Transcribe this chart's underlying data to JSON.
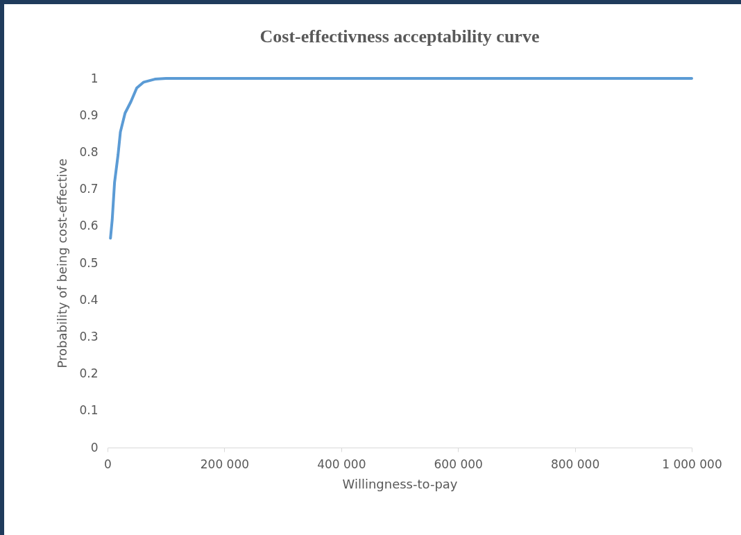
{
  "chart_data": {
    "type": "line",
    "title": "Cost-effectivness  acceptability curve",
    "xlabel": "Willingness-to-pay",
    "ylabel": "Probability of being cost-effective",
    "x": [
      5000,
      8000,
      12000,
      18000,
      22000,
      30000,
      40000,
      50000,
      62000,
      81000,
      100000,
      1000000
    ],
    "series": [
      {
        "color": "#5b9bd5",
        "values": [
          0.567,
          0.617,
          0.718,
          0.793,
          0.855,
          0.906,
          0.937,
          0.974,
          0.99,
          0.998,
          1,
          1
        ]
      }
    ],
    "xlim": [
      0,
      1000000
    ],
    "xticks": [
      0,
      {
        "value": 200000,
        "label": "200 000"
      },
      {
        "value": 400000,
        "label": "400 000"
      },
      {
        "value": 600000,
        "label": "600 000"
      },
      {
        "value": 800000,
        "label": "800 000"
      },
      {
        "value": 1000000,
        "label": "1 000 000"
      }
    ],
    "ylim": [
      0,
      1
    ],
    "yticks": [
      0,
      0.1,
      0.2,
      0.3,
      0.4,
      0.5,
      0.6,
      0.7,
      0.8,
      0.9,
      1
    ],
    "grid": false,
    "marker": "none",
    "line_style": "solid"
  }
}
